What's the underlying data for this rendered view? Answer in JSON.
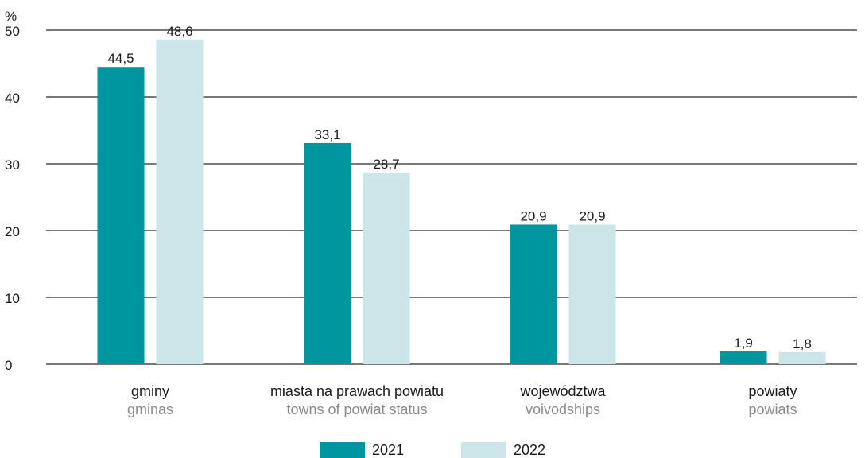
{
  "chart_data": {
    "type": "bar",
    "ylabel": "%",
    "ylim": [
      0,
      50
    ],
    "yticks": [
      0,
      10,
      20,
      30,
      40,
      50
    ],
    "grid": true,
    "legend_position": "bottom",
    "categories": [
      {
        "label": "gminy",
        "sublabel": "gminas"
      },
      {
        "label": "miasta na prawach powiatu",
        "sublabel": "towns of powiat status"
      },
      {
        "label": "województwa",
        "sublabel": "voivodships"
      },
      {
        "label": "powiaty",
        "sublabel": "powiats"
      }
    ],
    "series": [
      {
        "name": "2021",
        "color": "#00969f",
        "values": [
          44.5,
          33.1,
          20.9,
          1.9
        ],
        "labels": [
          "44,5",
          "33,1",
          "20,9",
          "1,9"
        ]
      },
      {
        "name": "2022",
        "color": "#cce5e8",
        "values": [
          48.6,
          28.7,
          20.9,
          1.8
        ],
        "labels": [
          "48,6",
          "28,7",
          "20,9",
          "1,8"
        ]
      }
    ]
  },
  "colors": {
    "gridline": "#4d4d4d",
    "sublabel": "#8a8a8a"
  }
}
